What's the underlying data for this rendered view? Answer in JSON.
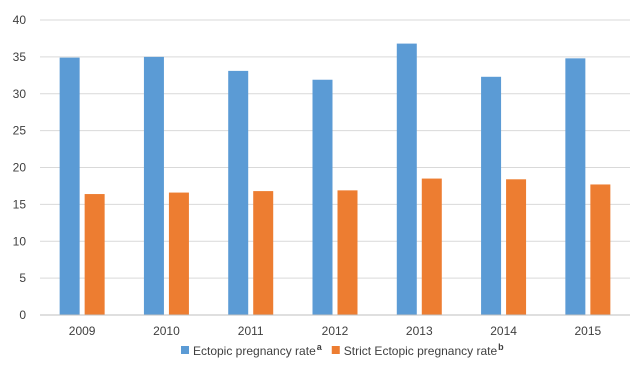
{
  "chart_data": {
    "type": "bar",
    "title": "",
    "xlabel": "",
    "ylabel": "",
    "categories": [
      "2009",
      "2010",
      "2011",
      "2012",
      "2013",
      "2014",
      "2015"
    ],
    "series": [
      {
        "name": "Ectopic pregnancy rate",
        "superscript": "a",
        "color": "#5b9bd5",
        "values": [
          34.9,
          35.0,
          33.1,
          31.9,
          36.8,
          32.3,
          34.8
        ]
      },
      {
        "name": "Strict Ectopic pregnancy rate",
        "superscript": "b",
        "color": "#ed7d31",
        "values": [
          16.4,
          16.6,
          16.8,
          16.9,
          18.5,
          18.4,
          17.7
        ]
      }
    ],
    "ylim": [
      0,
      40
    ],
    "yticks": [
      "0",
      "5",
      "10",
      "15",
      "20",
      "25",
      "30",
      "35",
      "40"
    ],
    "grid": true,
    "legend_position": "bottom"
  }
}
